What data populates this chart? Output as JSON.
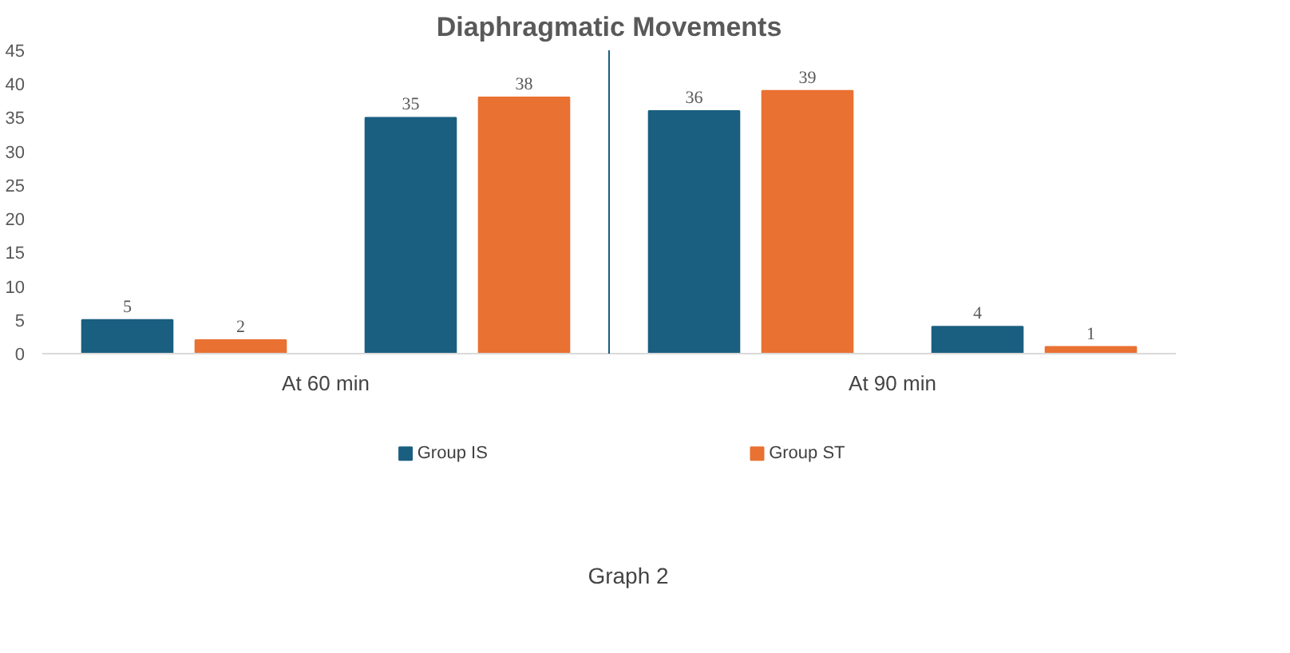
{
  "chart_data": {
    "type": "bar",
    "title": "Diaphragmatic Movements",
    "categories": [
      null,
      null,
      null,
      null
    ],
    "series": [
      {
        "name": "Group IS",
        "color": "#1a5f80",
        "values": [
          5,
          35,
          36,
          4
        ]
      },
      {
        "name": "Group ST",
        "color": "#e97132",
        "values": [
          2,
          38,
          39,
          1
        ]
      }
    ],
    "ylim": [
      0,
      45
    ],
    "yticks": [
      0,
      5,
      10,
      15,
      20,
      25,
      30,
      35,
      40,
      45
    ],
    "data_labels": true,
    "grid": false,
    "legend": "bottom",
    "annotations": [
      "At 60 min",
      "At 90 min",
      "Graph 2"
    ]
  }
}
